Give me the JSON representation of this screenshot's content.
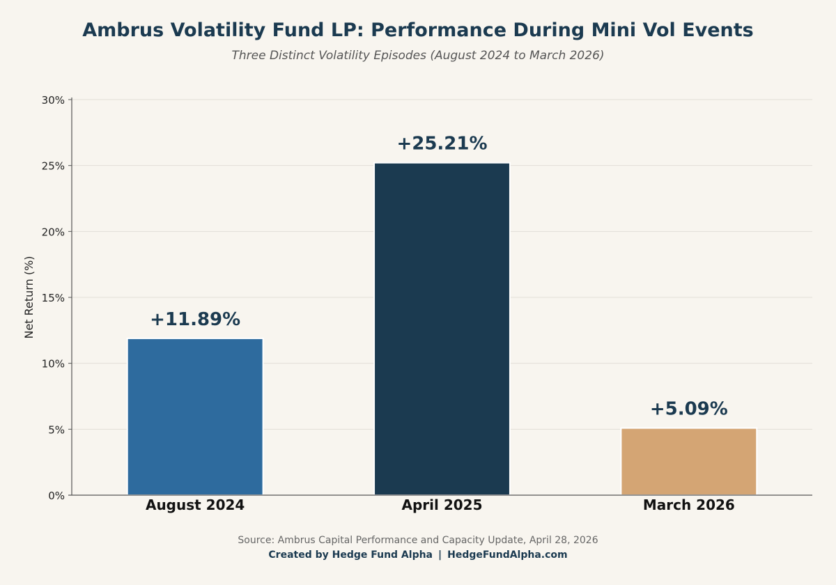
{
  "chart_data": {
    "type": "bar",
    "title": "Ambrus Volatility Fund LP: Performance During Mini Vol Events",
    "subtitle": "Three Distinct Volatility Episodes (August 2024 to March 2026)",
    "ylabel": "Net Return (%)",
    "xlabel": "",
    "categories": [
      "August 2024",
      "April 2025",
      "March 2026"
    ],
    "values": [
      11.89,
      25.21,
      5.09
    ],
    "data_labels": [
      "+11.89%",
      "+25.21%",
      "+5.09%"
    ],
    "bar_colors": [
      "#2e6b9e",
      "#1b3a50",
      "#d4a574"
    ],
    "ylim": [
      0,
      30
    ],
    "yticks": [
      0,
      5,
      10,
      15,
      20,
      25,
      30
    ],
    "ytick_labels": [
      "0%",
      "5%",
      "10%",
      "15%",
      "20%",
      "25%",
      "30%"
    ],
    "grid": "horizontal",
    "legend": "none"
  },
  "footer": {
    "source": "Source: Ambrus Capital Performance and Capacity Update, April 28, 2026",
    "credit_name": "Created by Hedge Fund Alpha",
    "separator": "|",
    "credit_site": "HedgeFundAlpha.com"
  },
  "colors": {
    "background": "#f8f5ef",
    "title": "#1b3a50",
    "grid": "#e2ded7",
    "axis": "#555555"
  }
}
